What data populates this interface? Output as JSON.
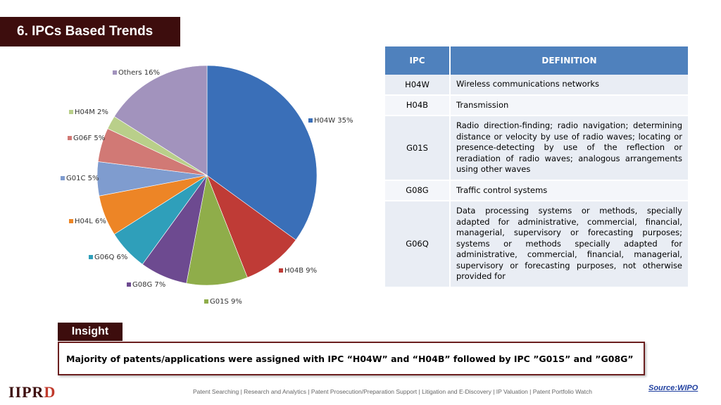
{
  "title": "6.  IPCs Based Trends",
  "chart_data": {
    "type": "pie",
    "slices": [
      {
        "label": "H04W",
        "value": 35,
        "color": "#3a6fb8"
      },
      {
        "label": "H04B",
        "value": 9,
        "color": "#bf3b36"
      },
      {
        "label": "G01S",
        "value": 9,
        "color": "#8fad4a"
      },
      {
        "label": "G08G",
        "value": 7,
        "color": "#6d4a90"
      },
      {
        "label": "G06Q",
        "value": 6,
        "color": "#2f9fba"
      },
      {
        "label": "H04L",
        "value": 6,
        "color": "#ed8526"
      },
      {
        "label": "G01C",
        "value": 5,
        "color": "#7f9ccf"
      },
      {
        "label": "G06F",
        "value": 5,
        "color": "#d17975"
      },
      {
        "label": "H04M",
        "value": 2,
        "color": "#b9cf8a"
      },
      {
        "label": "Others",
        "value": 16,
        "color": "#a293bd"
      }
    ]
  },
  "table": {
    "headers": [
      "IPC",
      "DEFINITION"
    ],
    "rows": [
      {
        "code": "H04W",
        "definition": "Wireless communications networks"
      },
      {
        "code": "H04B",
        "definition": "Transmission"
      },
      {
        "code": "G01S",
        "definition": "Radio direction-finding; radio navigation; determining distance or velocity by use of radio waves; locating or presence-detecting by use of the reflection or reradiation of radio waves; analogous arrangements using other waves"
      },
      {
        "code": "G08G",
        "definition": "Traffic control systems"
      },
      {
        "code": "G06Q",
        "definition": "Data processing systems or methods, specially adapted for administrative, commercial, financial, managerial, supervisory or forecasting purposes; systems or methods specially adapted for administrative, commercial, financial, managerial, supervisory or forecasting purposes, not otherwise provided for"
      }
    ]
  },
  "insight": {
    "label": "Insight",
    "text": "Majority of patents/applications were assigned with IPC “H04W” and “H04B” followed by IPC ”G01S” and ”G08G”"
  },
  "logo_text": "IIPRD",
  "footer_text": "Patent Searching | Research and Analytics | Patent Prosecution/Preparation Support | Litigation and E-Discovery | IP Valuation | Patent Portfolio Watch",
  "source_text": "Source:WIPO"
}
